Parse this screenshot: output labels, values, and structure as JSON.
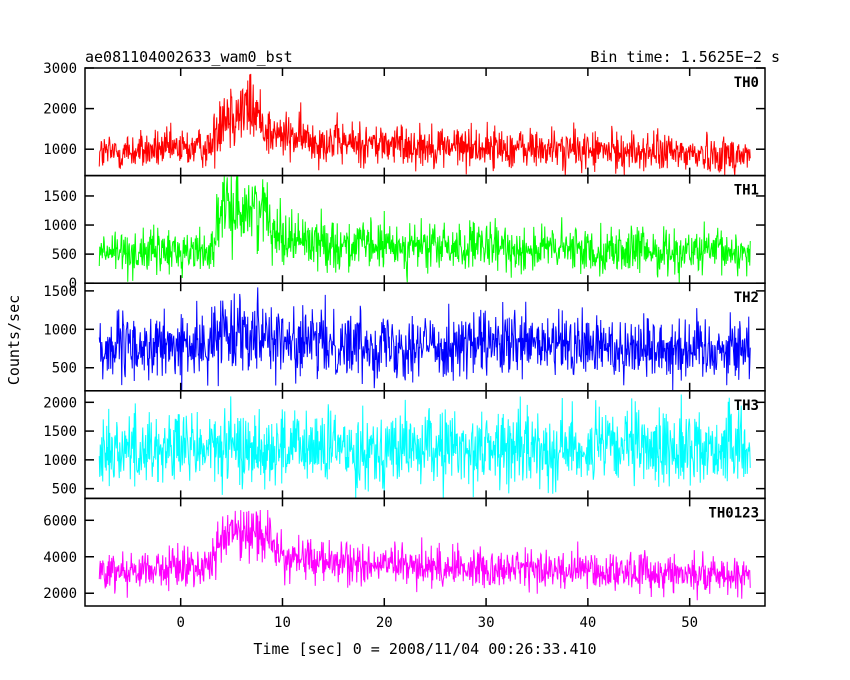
{
  "chart_data": {
    "type": "line",
    "title_left": "ae081104002633_wam0_bst",
    "title_right": "Bin time: 1.5625E−2 s",
    "xlabel": "Time [sec] 0 = 2008/11/04 00:26:33.410",
    "ylabel": "Counts/sec",
    "xlim": [
      -9.4,
      57.4
    ],
    "x_ticks": [
      0,
      10,
      20,
      30,
      40,
      50
    ],
    "x_data_range": [
      -8.0,
      56.0
    ],
    "bin_time": 0.015625,
    "grid": false,
    "panels": [
      {
        "name": "TH0",
        "color": "#ff0000",
        "ylim": [
          350,
          3000
        ],
        "y_ticks": [
          1000,
          2000,
          3000
        ],
        "profile": [
          {
            "t": -8,
            "mean": 900,
            "noise": 340
          },
          {
            "t": 3,
            "mean": 1050,
            "noise": 340
          },
          {
            "t": 4,
            "mean": 1900,
            "noise": 650
          },
          {
            "t": 7,
            "mean": 2000,
            "noise": 650
          },
          {
            "t": 9,
            "mean": 1350,
            "noise": 420
          },
          {
            "t": 16,
            "mean": 1150,
            "noise": 380
          },
          {
            "t": 56,
            "mean": 850,
            "noise": 330
          }
        ]
      },
      {
        "name": "TH1",
        "color": "#00ff00",
        "ylim": [
          0,
          1850
        ],
        "y_ticks": [
          0,
          500,
          1000,
          1500
        ],
        "profile": [
          {
            "t": -8,
            "mean": 520,
            "noise": 270
          },
          {
            "t": 3,
            "mean": 560,
            "noise": 270
          },
          {
            "t": 4,
            "mean": 1250,
            "noise": 430
          },
          {
            "t": 8,
            "mean": 1300,
            "noise": 430
          },
          {
            "t": 10,
            "mean": 800,
            "noise": 330
          },
          {
            "t": 16,
            "mean": 650,
            "noise": 300
          },
          {
            "t": 56,
            "mean": 520,
            "noise": 270
          }
        ]
      },
      {
        "name": "TH2",
        "color": "#0000ff",
        "ylim": [
          200,
          1600
        ],
        "y_ticks": [
          500,
          1000,
          1500
        ],
        "profile": [
          {
            "t": -8,
            "mean": 750,
            "noise": 300
          },
          {
            "t": 3,
            "mean": 780,
            "noise": 300
          },
          {
            "t": 4,
            "mean": 1000,
            "noise": 340
          },
          {
            "t": 8,
            "mean": 1000,
            "noise": 340
          },
          {
            "t": 10,
            "mean": 820,
            "noise": 310
          },
          {
            "t": 56,
            "mean": 750,
            "noise": 300
          }
        ]
      },
      {
        "name": "TH3",
        "color": "#00ffff",
        "ylim": [
          330,
          2200
        ],
        "y_ticks": [
          500,
          1000,
          1500,
          2000
        ],
        "profile": [
          {
            "t": -8,
            "mean": 1200,
            "noise": 460
          },
          {
            "t": 56,
            "mean": 1200,
            "noise": 460
          }
        ]
      },
      {
        "name": "TH0123",
        "color": "#ff00ff",
        "ylim": [
          1300,
          7200
        ],
        "y_ticks": [
          2000,
          4000,
          6000
        ],
        "profile": [
          {
            "t": -8,
            "mean": 3200,
            "noise": 760
          },
          {
            "t": 3,
            "mean": 3500,
            "noise": 760
          },
          {
            "t": 4,
            "mean": 5200,
            "noise": 1000
          },
          {
            "t": 8,
            "mean": 5400,
            "noise": 1000
          },
          {
            "t": 10,
            "mean": 4000,
            "noise": 850
          },
          {
            "t": 16,
            "mean": 3600,
            "noise": 800
          },
          {
            "t": 56,
            "mean": 3000,
            "noise": 740
          }
        ]
      }
    ]
  }
}
